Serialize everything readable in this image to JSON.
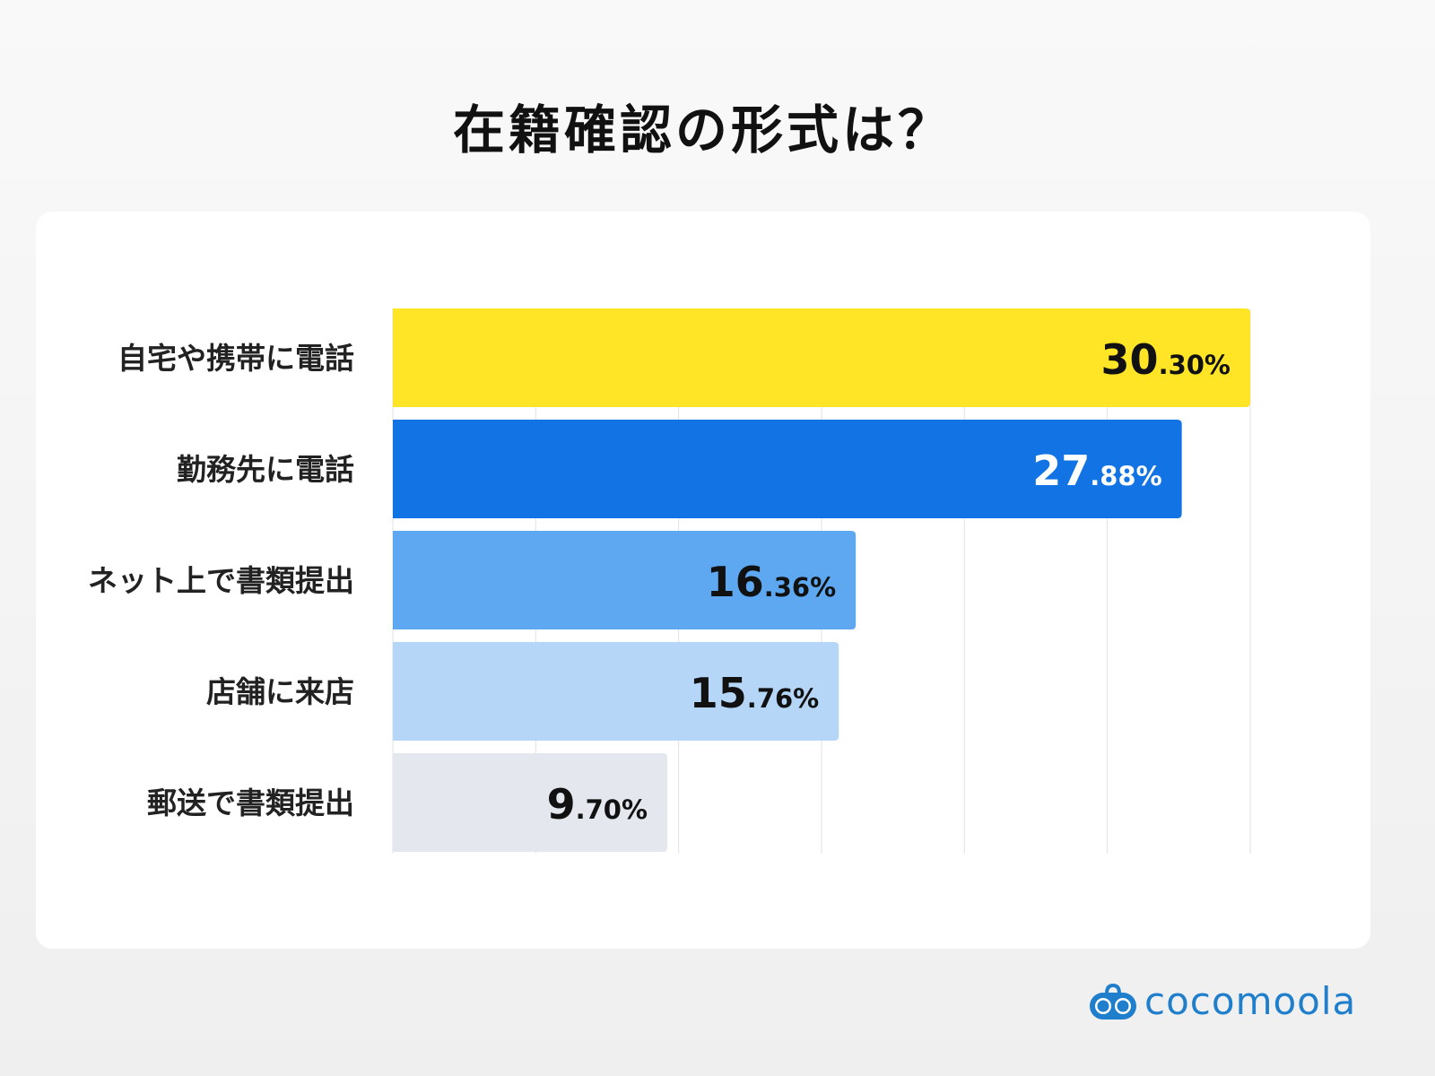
{
  "chart_data": {
    "type": "bar",
    "orientation": "horizontal",
    "title": "在籍確認の形式は？",
    "categories": [
      "自宅や携帯に電話",
      "勤務先に電話",
      "ネット上で書類提出",
      "店舗に来店",
      "郵送で書類提出"
    ],
    "values": [
      30.3,
      27.88,
      16.36,
      15.76,
      9.7
    ],
    "unit": "%",
    "xlim": [
      0,
      30.3
    ],
    "grid": true,
    "gridlines": 6,
    "bar_colors": [
      "#FFE525",
      "#1273E4",
      "#5DA8F0",
      "#B5D6F7",
      "#E4E8EE"
    ],
    "label_colors": [
      "#111111",
      "#FFFFFF",
      "#111111",
      "#111111",
      "#111111"
    ]
  },
  "brand": {
    "name": "cocomoola",
    "color": "#1F7FCC"
  }
}
